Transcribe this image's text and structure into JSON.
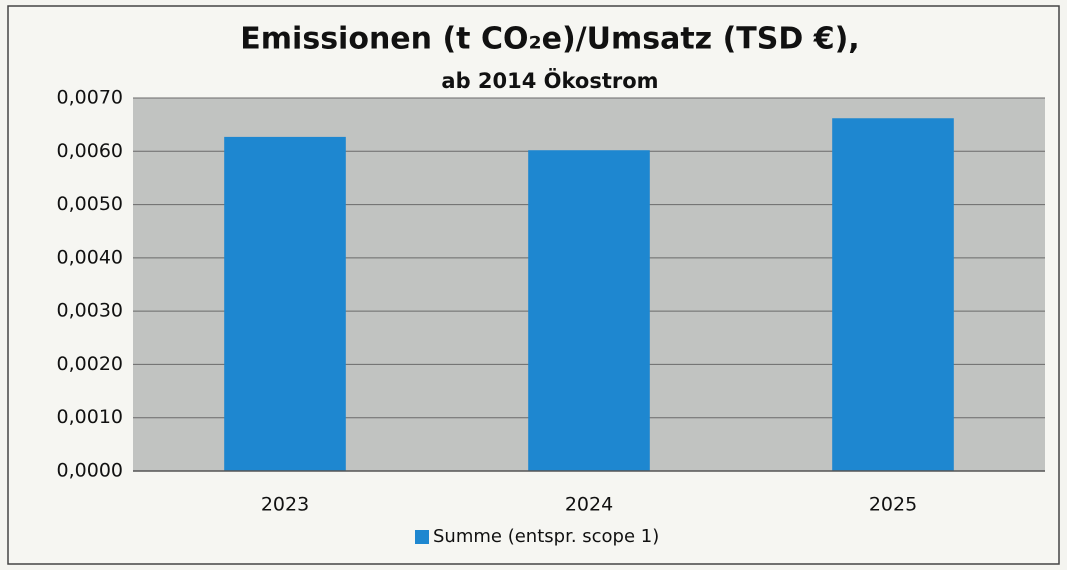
{
  "chart_data": {
    "type": "bar",
    "title": "Emissionen (t CO₂e)/Umsatz (TSD €),",
    "subtitle": "ab 2014 Ökostrom",
    "categories": [
      "2023",
      "2024",
      "2025"
    ],
    "series": [
      {
        "name": "Summe (entspr. scope 1)",
        "color": "#1e87d0",
        "values": [
          0.00627,
          0.00602,
          0.00662
        ]
      }
    ],
    "ylim": [
      0,
      0.007
    ],
    "yticks": [
      {
        "value": 0,
        "label": "0,0000"
      },
      {
        "value": 0.001,
        "label": "0,0010"
      },
      {
        "value": 0.002,
        "label": "0,0020"
      },
      {
        "value": 0.003,
        "label": "0,0030"
      },
      {
        "value": 0.004,
        "label": "0,0040"
      },
      {
        "value": 0.005,
        "label": "0,0050"
      },
      {
        "value": 0.006,
        "label": "0,0060"
      },
      {
        "value": 0.007,
        "label": "0,0070"
      }
    ],
    "grid": true,
    "legend": "bottom"
  }
}
